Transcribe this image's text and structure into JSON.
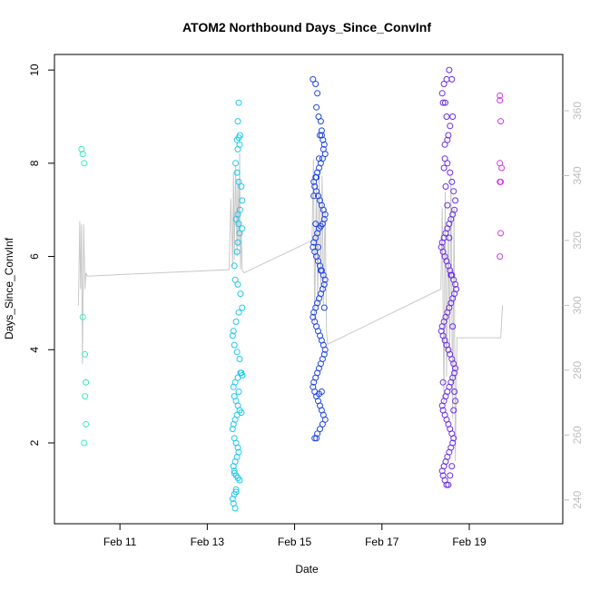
{
  "chart_data": {
    "type": "scatter",
    "title": "ATOM2 Northbound Days_Since_ConvInf",
    "xlabel": "Date",
    "ylabel": "Days_Since_ConvInf",
    "x_ticks": [
      "Feb 11",
      "Feb 13",
      "Feb 15",
      "Feb 17",
      "Feb 19"
    ],
    "x_tick_values": [
      11,
      13,
      15,
      17,
      19
    ],
    "xlim": [
      9.75,
      20.85
    ],
    "y_ticks": [
      2,
      4,
      6,
      8,
      10
    ],
    "ylim": [
      0.5,
      10.1
    ],
    "y2_ticks": [
      240,
      260,
      280,
      300,
      320,
      340,
      360
    ],
    "y2lim": [
      236,
      374
    ],
    "colors": {
      "group1": "#3ee8c0",
      "group2": "#1ec8ec",
      "group3": "#1f45e6",
      "group4": "#6a2ee8",
      "group5": "#d13be8",
      "line": "#c8c8c8",
      "right_axis": "#bdbdbd"
    },
    "series": [
      {
        "color_key": "group1",
        "x": [
          10.12,
          10.15,
          10.18,
          10.15,
          10.2,
          10.22,
          10.22,
          10.2,
          10.18,
          10.22
        ],
        "y": [
          8.3,
          8.2,
          8.0,
          4.7,
          3.9,
          3.3,
          2.4,
          3.0,
          2.0,
          3.3
        ]
      },
      {
        "color_key": "group2",
        "x": [
          13.72,
          13.7,
          13.75,
          13.68,
          13.72,
          13.74,
          13.7,
          13.65,
          13.68,
          13.72,
          13.78,
          13.8,
          13.75,
          13.7,
          13.66,
          13.72,
          13.8,
          13.74,
          13.7,
          13.68,
          13.62,
          13.64,
          13.7,
          13.76,
          13.8,
          13.72,
          13.66,
          13.6,
          13.58,
          13.62,
          13.68,
          13.74,
          13.78,
          13.7,
          13.64,
          13.6,
          13.62,
          13.66,
          13.7,
          13.74,
          13.78,
          13.8,
          13.76,
          13.72,
          13.68,
          13.64,
          13.6,
          13.58,
          13.62,
          13.66,
          13.7,
          13.72,
          13.68,
          13.64,
          13.6,
          13.62,
          13.66,
          13.7,
          13.74,
          13.66,
          13.62,
          13.58,
          13.6,
          13.64,
          13.66,
          13.62
        ],
        "y": [
          9.3,
          8.9,
          8.6,
          8.5,
          8.55,
          8.4,
          8.3,
          8.0,
          7.8,
          7.6,
          7.5,
          7.2,
          7.0,
          6.9,
          6.8,
          6.7,
          6.6,
          6.5,
          6.3,
          6.1,
          5.8,
          5.5,
          5.4,
          5.2,
          4.9,
          4.8,
          4.6,
          4.4,
          4.3,
          4.1,
          3.95,
          3.8,
          3.5,
          3.4,
          3.3,
          3.2,
          3.0,
          2.9,
          2.8,
          2.7,
          2.65,
          3.45,
          3.5,
          3.1,
          2.6,
          2.5,
          2.4,
          2.3,
          2.1,
          2.0,
          1.9,
          1.8,
          1.7,
          1.6,
          1.5,
          1.4,
          1.3,
          1.25,
          1.2,
          1.0,
          0.9,
          0.8,
          0.7,
          0.6,
          0.95,
          1.35
        ]
      },
      {
        "color_key": "group3",
        "x": [
          15.42,
          15.48,
          15.52,
          15.5,
          15.55,
          15.6,
          15.62,
          15.58,
          15.65,
          15.68,
          15.66,
          15.7,
          15.64,
          15.6,
          15.56,
          15.52,
          15.48,
          15.44,
          15.46,
          15.5,
          15.54,
          15.58,
          15.62,
          15.66,
          15.7,
          15.68,
          15.64,
          15.6,
          15.56,
          15.52,
          15.48,
          15.44,
          15.42,
          15.46,
          15.5,
          15.54,
          15.58,
          15.62,
          15.66,
          15.7,
          15.68,
          15.64,
          15.6,
          15.56,
          15.52,
          15.48,
          15.44,
          15.42,
          15.46,
          15.5,
          15.54,
          15.58,
          15.62,
          15.66,
          15.7,
          15.68,
          15.64,
          15.6,
          15.56,
          15.52,
          15.48,
          15.44,
          15.42,
          15.46,
          15.5,
          15.54,
          15.58,
          15.62,
          15.66,
          15.7,
          15.64,
          15.58,
          15.52,
          15.46,
          15.5,
          15.56,
          15.62,
          15.68,
          15.6,
          15.54,
          15.48,
          15.44,
          15.5,
          15.56,
          15.62
        ],
        "y": [
          9.8,
          9.7,
          9.5,
          9.2,
          9.0,
          8.9,
          8.7,
          8.6,
          8.5,
          8.4,
          8.3,
          8.2,
          8.1,
          8.0,
          7.9,
          7.8,
          7.7,
          7.6,
          7.5,
          7.4,
          7.3,
          7.2,
          7.1,
          7.0,
          6.9,
          6.8,
          6.7,
          6.65,
          6.6,
          6.5,
          6.4,
          6.3,
          6.2,
          6.1,
          6.0,
          5.9,
          5.8,
          5.7,
          5.6,
          5.5,
          5.4,
          5.3,
          5.2,
          5.1,
          5.0,
          4.9,
          4.8,
          4.7,
          4.6,
          4.5,
          4.4,
          4.3,
          4.2,
          4.1,
          4.0,
          3.9,
          3.8,
          3.7,
          3.6,
          3.5,
          3.4,
          3.3,
          3.2,
          3.1,
          3.0,
          2.9,
          2.8,
          2.7,
          2.6,
          2.5,
          2.4,
          2.3,
          2.2,
          2.1,
          2.1,
          3.05,
          3.1,
          4.9,
          5.7,
          6.2,
          6.7,
          7.3,
          7.7,
          8.1,
          8.6
        ]
      },
      {
        "color_key": "group4",
        "x": [
          18.42,
          18.38,
          18.45,
          18.4,
          18.48,
          18.52,
          18.44,
          18.5,
          18.56,
          18.6,
          18.64,
          18.68,
          18.66,
          18.62,
          18.58,
          18.54,
          18.5,
          18.46,
          18.42,
          18.38,
          18.36,
          18.4,
          18.44,
          18.48,
          18.52,
          18.56,
          18.6,
          18.64,
          18.68,
          18.7,
          18.66,
          18.62,
          18.58,
          18.54,
          18.5,
          18.46,
          18.42,
          18.38,
          18.36,
          18.4,
          18.44,
          18.48,
          18.52,
          18.56,
          18.6,
          18.64,
          18.68,
          18.66,
          18.62,
          18.58,
          18.54,
          18.5,
          18.46,
          18.42,
          18.38,
          18.4,
          18.44,
          18.48,
          18.52,
          18.56,
          18.6,
          18.64,
          18.62,
          18.58,
          18.54,
          18.5,
          18.46,
          18.42,
          18.38,
          18.4,
          18.44,
          18.48,
          18.52,
          18.56,
          18.6,
          18.64,
          18.68,
          18.66,
          18.62,
          18.58,
          18.54,
          18.5,
          18.46,
          18.42,
          18.44,
          18.5,
          18.56,
          18.62,
          18.48,
          18.54,
          18.6,
          18.4
        ],
        "y": [
          9.7,
          9.5,
          9.3,
          9.3,
          9.0,
          8.6,
          8.4,
          8.0,
          7.8,
          7.6,
          7.4,
          7.2,
          7.0,
          6.9,
          6.8,
          6.7,
          6.6,
          6.5,
          6.4,
          6.3,
          6.2,
          6.1,
          6.0,
          5.9,
          5.8,
          5.7,
          5.6,
          5.5,
          5.4,
          5.3,
          5.2,
          5.1,
          5.0,
          4.9,
          4.8,
          4.7,
          4.6,
          4.5,
          4.4,
          4.3,
          4.2,
          4.1,
          4.0,
          3.9,
          3.8,
          3.7,
          3.6,
          3.5,
          3.4,
          3.3,
          3.2,
          3.1,
          3.0,
          2.9,
          2.8,
          2.7,
          2.6,
          2.5,
          2.4,
          2.3,
          2.2,
          2.1,
          2.0,
          1.9,
          1.8,
          1.7,
          1.6,
          1.5,
          1.4,
          1.3,
          1.2,
          1.1,
          1.1,
          1.3,
          1.5,
          2.7,
          2.9,
          3.1,
          4.5,
          5.6,
          6.4,
          7.1,
          7.5,
          7.9,
          8.1,
          8.5,
          8.8,
          9.0,
          9.8,
          10.0,
          9.8,
          3.3
        ]
      },
      {
        "color_key": "group5",
        "x": [
          19.7,
          19.7,
          19.72,
          19.7,
          19.74,
          19.72,
          19.7,
          19.72,
          19.7
        ],
        "y": [
          9.45,
          9.35,
          8.9,
          8.0,
          7.9,
          7.6,
          7.6,
          6.5,
          6.0
        ]
      }
    ],
    "line_series": {
      "axis": "right",
      "x": [
        10.05,
        10.08,
        10.1,
        10.12,
        10.14,
        10.17,
        10.2,
        10.22,
        10.25,
        13.5,
        13.54,
        13.58,
        13.6,
        13.62,
        13.65,
        13.68,
        13.7,
        13.72,
        13.74,
        13.76,
        13.78,
        13.8,
        13.84,
        15.4,
        15.43,
        15.46,
        15.5,
        15.53,
        15.56,
        15.6,
        15.63,
        15.66,
        15.7,
        15.73,
        15.76,
        18.35,
        18.38,
        18.42,
        18.45,
        18.48,
        18.52,
        18.55,
        18.58,
        18.62,
        18.65,
        18.68,
        18.72,
        19.72,
        19.74,
        19.76
      ],
      "y": [
        300,
        326,
        305,
        325,
        282,
        325,
        305,
        310,
        309,
        311,
        333,
        312,
        341,
        314,
        343,
        315,
        339,
        318,
        347,
        311,
        323,
        311,
        310,
        320,
        345,
        295,
        338,
        300,
        342,
        305,
        340,
        300,
        330,
        292,
        288,
        305,
        330,
        270,
        335,
        278,
        325,
        285,
        340,
        265,
        330,
        252,
        290,
        290,
        295,
        300
      ]
    },
    "grid": false,
    "legend": "none"
  }
}
